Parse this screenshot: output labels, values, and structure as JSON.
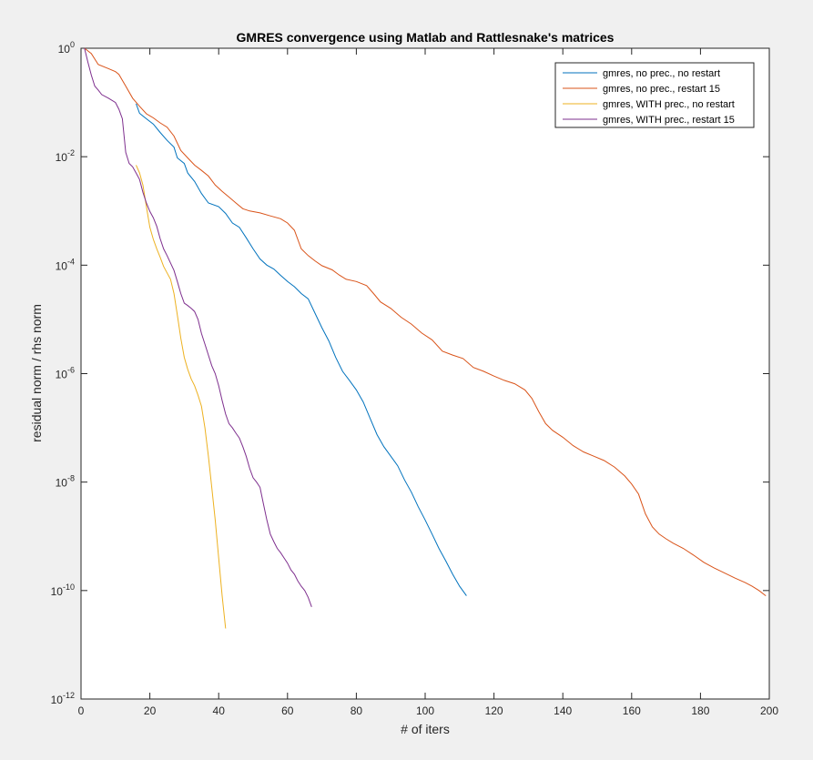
{
  "chart_data": {
    "type": "line",
    "title": "GMRES convergence using Matlab and Rattlesnake's matrices",
    "xlabel": "# of iters",
    "ylabel": "residual norm / rhs norm",
    "xlim": [
      0,
      200
    ],
    "ylim": [
      1e-12,
      1
    ],
    "y_scale": "log",
    "x_ticks": [
      0,
      20,
      40,
      60,
      80,
      100,
      120,
      140,
      160,
      180,
      200
    ],
    "y_ticks": [
      {
        "base": "10",
        "exp": "0",
        "value": 1
      },
      {
        "base": "10",
        "exp": "-2",
        "value": 0.01
      },
      {
        "base": "10",
        "exp": "-4",
        "value": 0.0001
      },
      {
        "base": "10",
        "exp": "-6",
        "value": 1e-06
      },
      {
        "base": "10",
        "exp": "-8",
        "value": 1e-08
      },
      {
        "base": "10",
        "exp": "-10",
        "value": 1e-10
      },
      {
        "base": "10",
        "exp": "-12",
        "value": 1e-12
      }
    ],
    "grid": false,
    "legend_position": "top-right",
    "series": [
      {
        "name": "gmres, no prec., no restart",
        "color": "#0072BD",
        "points": [
          [
            16,
            0.095
          ],
          [
            17,
            0.063
          ],
          [
            19,
            0.05
          ],
          [
            21,
            0.04
          ],
          [
            23,
            0.028
          ],
          [
            25,
            0.02
          ],
          [
            27,
            0.015
          ],
          [
            28,
            0.0095
          ],
          [
            30,
            0.0075
          ],
          [
            31,
            0.005
          ],
          [
            33,
            0.0035
          ],
          [
            35,
            0.0021
          ],
          [
            37,
            0.0014
          ],
          [
            40,
            0.0012
          ],
          [
            42,
            0.0009
          ],
          [
            44,
            0.0006
          ],
          [
            46,
            0.0005
          ],
          [
            48,
            0.00032
          ],
          [
            50,
            0.0002
          ],
          [
            52,
            0.00013
          ],
          [
            54,
            0.0001
          ],
          [
            56,
            8.5e-05
          ],
          [
            58,
            6.5e-05
          ],
          [
            60,
            5e-05
          ],
          [
            62,
            4e-05
          ],
          [
            64,
            3e-05
          ],
          [
            66,
            2.4e-05
          ],
          [
            68,
            1.3e-05
          ],
          [
            70,
            7e-06
          ],
          [
            72,
            4e-06
          ],
          [
            74,
            2e-06
          ],
          [
            76,
            1.1e-06
          ],
          [
            78,
            7.5e-07
          ],
          [
            80,
            5e-07
          ],
          [
            82,
            3e-07
          ],
          [
            84,
            1.5e-07
          ],
          [
            86,
            7.5e-08
          ],
          [
            88,
            4.5e-08
          ],
          [
            90,
            3e-08
          ],
          [
            92,
            2e-08
          ],
          [
            94,
            1.1e-08
          ],
          [
            96,
            6.5e-09
          ],
          [
            98,
            3.5e-09
          ],
          [
            100,
            2e-09
          ],
          [
            102,
            1.1e-09
          ],
          [
            104,
            6e-10
          ],
          [
            106,
            3.5e-10
          ],
          [
            108,
            2e-10
          ],
          [
            110,
            1.2e-10
          ],
          [
            112,
            8e-11
          ]
        ]
      },
      {
        "name": "gmres, no prec., restart 15",
        "color": "#D95319",
        "points": [
          [
            1,
            1.0
          ],
          [
            3,
            0.8
          ],
          [
            5,
            0.5
          ],
          [
            8,
            0.42
          ],
          [
            10,
            0.37
          ],
          [
            11,
            0.33
          ],
          [
            13,
            0.2
          ],
          [
            15,
            0.12
          ],
          [
            17,
            0.085
          ],
          [
            19,
            0.062
          ],
          [
            21,
            0.052
          ],
          [
            23,
            0.042
          ],
          [
            25,
            0.035
          ],
          [
            27,
            0.024
          ],
          [
            29,
            0.013
          ],
          [
            31,
            0.0095
          ],
          [
            33,
            0.007
          ],
          [
            35,
            0.0056
          ],
          [
            37,
            0.0044
          ],
          [
            39,
            0.003
          ],
          [
            41,
            0.0023
          ],
          [
            43,
            0.0018
          ],
          [
            45,
            0.0014
          ],
          [
            47,
            0.0011
          ],
          [
            49,
            0.001
          ],
          [
            52,
            0.00092
          ],
          [
            55,
            0.00081
          ],
          [
            58,
            0.00072
          ],
          [
            60,
            0.0006
          ],
          [
            62,
            0.00044
          ],
          [
            64,
            0.0002
          ],
          [
            66,
            0.00015
          ],
          [
            68,
            0.00012
          ],
          [
            70,
            9.8e-05
          ],
          [
            73,
            8.2e-05
          ],
          [
            75,
            6.6e-05
          ],
          [
            77,
            5.5e-05
          ],
          [
            80,
            5e-05
          ],
          [
            83,
            4.2e-05
          ],
          [
            85,
            3e-05
          ],
          [
            87,
            2.1e-05
          ],
          [
            90,
            1.6e-05
          ],
          [
            93,
            1.1e-05
          ],
          [
            96,
            8.2e-06
          ],
          [
            99,
            5.6e-06
          ],
          [
            102,
            4.2e-06
          ],
          [
            105,
            2.6e-06
          ],
          [
            108,
            2.2e-06
          ],
          [
            111,
            1.9e-06
          ],
          [
            114,
            1.3e-06
          ],
          [
            117,
            1.1e-06
          ],
          [
            120,
            9e-07
          ],
          [
            123,
            7.5e-07
          ],
          [
            126,
            6.5e-07
          ],
          [
            129,
            5e-07
          ],
          [
            131,
            3.5e-07
          ],
          [
            133,
            2e-07
          ],
          [
            135,
            1.2e-07
          ],
          [
            137,
            9e-08
          ],
          [
            140,
            6.7e-08
          ],
          [
            143,
            4.7e-08
          ],
          [
            146,
            3.6e-08
          ],
          [
            149,
            3e-08
          ],
          [
            152,
            2.5e-08
          ],
          [
            155,
            1.9e-08
          ],
          [
            158,
            1.3e-08
          ],
          [
            160,
            9.2e-09
          ],
          [
            162,
            6e-09
          ],
          [
            164,
            2.6e-09
          ],
          [
            166,
            1.5e-09
          ],
          [
            168,
            1.1e-09
          ],
          [
            170,
            9e-10
          ],
          [
            172,
            7.5e-10
          ],
          [
            175,
            6e-10
          ],
          [
            178,
            4.5e-10
          ],
          [
            181,
            3.3e-10
          ],
          [
            184,
            2.6e-10
          ],
          [
            187,
            2.1e-10
          ],
          [
            190,
            1.7e-10
          ],
          [
            193,
            1.4e-10
          ],
          [
            195,
            1.2e-10
          ],
          [
            197,
            1e-10
          ],
          [
            199,
            8e-11
          ]
        ]
      },
      {
        "name": "gmres, WITH prec., no restart",
        "color": "#EDB120",
        "points": [
          [
            16,
            0.007
          ],
          [
            17,
            0.005
          ],
          [
            18,
            0.003
          ],
          [
            19,
            0.0012
          ],
          [
            20,
            0.0005
          ],
          [
            21,
            0.0003
          ],
          [
            22,
            0.0002
          ],
          [
            23,
            0.00014
          ],
          [
            24,
            9.5e-05
          ],
          [
            25,
            7.2e-05
          ],
          [
            26,
            5.5e-05
          ],
          [
            27,
            3e-05
          ],
          [
            28,
            1.2e-05
          ],
          [
            29,
            4.5e-06
          ],
          [
            30,
            2e-06
          ],
          [
            31,
            1.2e-06
          ],
          [
            32,
            8e-07
          ],
          [
            33,
            6e-07
          ],
          [
            34,
            4e-07
          ],
          [
            35,
            2.5e-07
          ],
          [
            36,
            1e-07
          ],
          [
            37,
            3e-08
          ],
          [
            38,
            8e-09
          ],
          [
            39,
            2e-09
          ],
          [
            40,
            4e-10
          ],
          [
            41,
            8e-11
          ],
          [
            42,
            2e-11
          ]
        ]
      },
      {
        "name": "gmres, WITH prec., restart 15",
        "color": "#7E2F8E",
        "points": [
          [
            1,
            1.0
          ],
          [
            2,
            0.55
          ],
          [
            3,
            0.32
          ],
          [
            4,
            0.2
          ],
          [
            5,
            0.17
          ],
          [
            6,
            0.14
          ],
          [
            8,
            0.12
          ],
          [
            10,
            0.1
          ],
          [
            11,
            0.075
          ],
          [
            12,
            0.05
          ],
          [
            13,
            0.012
          ],
          [
            14,
            0.0075
          ],
          [
            15,
            0.0065
          ],
          [
            16,
            0.005
          ],
          [
            17,
            0.0038
          ],
          [
            18,
            0.0022
          ],
          [
            19,
            0.0014
          ],
          [
            20,
            0.00098
          ],
          [
            21,
            0.00075
          ],
          [
            22,
            0.00052
          ],
          [
            23,
            0.00031
          ],
          [
            24,
            0.0002
          ],
          [
            25,
            0.00015
          ],
          [
            26,
            0.00011
          ],
          [
            27,
            8e-05
          ],
          [
            28,
            5e-05
          ],
          [
            29,
            3e-05
          ],
          [
            30,
            2e-05
          ],
          [
            31,
            1.8e-05
          ],
          [
            32,
            1.6e-05
          ],
          [
            33,
            1.4e-05
          ],
          [
            34,
            1e-05
          ],
          [
            35,
            5.5e-06
          ],
          [
            36,
            3.5e-06
          ],
          [
            37,
            2.2e-06
          ],
          [
            38,
            1.4e-06
          ],
          [
            39,
            1e-06
          ],
          [
            40,
            6e-07
          ],
          [
            41,
            3.2e-07
          ],
          [
            42,
            1.8e-07
          ],
          [
            43,
            1.2e-07
          ],
          [
            44,
            1e-07
          ],
          [
            45,
            8e-08
          ],
          [
            46,
            6.5e-08
          ],
          [
            47,
            4.5e-08
          ],
          [
            48,
            3e-08
          ],
          [
            49,
            1.8e-08
          ],
          [
            50,
            1.2e-08
          ],
          [
            51,
            1e-08
          ],
          [
            52,
            8e-09
          ],
          [
            53,
            4e-09
          ],
          [
            54,
            2e-09
          ],
          [
            55,
            1.1e-09
          ],
          [
            56,
            8e-10
          ],
          [
            57,
            6e-10
          ],
          [
            58,
            5e-10
          ],
          [
            59,
            4e-10
          ],
          [
            60,
            3.2e-10
          ],
          [
            61,
            2.4e-10
          ],
          [
            62,
            2e-10
          ],
          [
            63,
            1.5e-10
          ],
          [
            64,
            1.2e-10
          ],
          [
            65,
            1e-10
          ],
          [
            66,
            7.5e-11
          ],
          [
            67,
            5e-11
          ]
        ]
      }
    ]
  }
}
